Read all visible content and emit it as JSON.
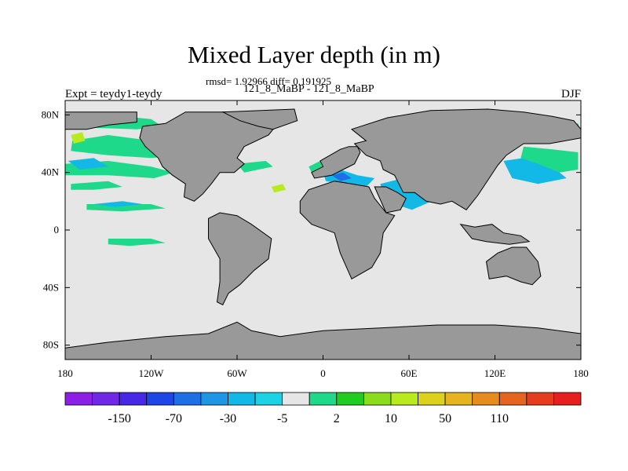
{
  "title": "Mixed Layer depth (in m)",
  "stats": "rmsd= 1.92966 diff= 0.191925",
  "periods": "121_8_MaBP - 121_8_MaBP",
  "left_label": "Expt = teydy1-teydy",
  "right_label": "DJF",
  "map": {
    "lon_range": [
      -180,
      180
    ],
    "lat_range": [
      -90,
      90
    ],
    "ocean_color": "#e6e6e6",
    "land_color": "#999999",
    "x_ticks": [
      {
        "lon": -180,
        "label": "180"
      },
      {
        "lon": -120,
        "label": "120W"
      },
      {
        "lon": -60,
        "label": "60W"
      },
      {
        "lon": 0,
        "label": "0"
      },
      {
        "lon": 60,
        "label": "60E"
      },
      {
        "lon": 120,
        "label": "120E"
      },
      {
        "lon": 180,
        "label": "180"
      }
    ],
    "y_ticks": [
      {
        "lat": 80,
        "label": "80N"
      },
      {
        "lat": 40,
        "label": "40N"
      },
      {
        "lat": 0,
        "label": "0"
      },
      {
        "lat": -40,
        "label": "40S"
      },
      {
        "lat": -80,
        "label": "80S"
      }
    ],
    "land_masses": [
      {
        "name": "north-america",
        "points": [
          [
            -96,
            82
          ],
          [
            -40,
            82
          ],
          [
            -30,
            76
          ],
          [
            -38,
            66
          ],
          [
            -55,
            58
          ],
          [
            -60,
            50
          ],
          [
            -55,
            46
          ],
          [
            -62,
            40
          ],
          [
            -72,
            40
          ],
          [
            -78,
            32
          ],
          [
            -84,
            25
          ],
          [
            -90,
            20
          ],
          [
            -97,
            23
          ],
          [
            -96,
            32
          ],
          [
            -105,
            38
          ],
          [
            -112,
            44
          ],
          [
            -115,
            50
          ],
          [
            -124,
            58
          ],
          [
            -128,
            64
          ],
          [
            -126,
            72
          ],
          [
            -110,
            74
          ]
        ]
      },
      {
        "name": "alaska-siberia-strip",
        "points": [
          [
            -180,
            82
          ],
          [
            -130,
            82
          ],
          [
            -130,
            75
          ],
          [
            -150,
            73
          ],
          [
            -165,
            70
          ],
          [
            -180,
            70
          ]
        ]
      },
      {
        "name": "greenland",
        "points": [
          [
            -70,
            82
          ],
          [
            -20,
            84
          ],
          [
            -18,
            76
          ],
          [
            -35,
            70
          ],
          [
            -45,
            72
          ],
          [
            -58,
            76
          ]
        ]
      },
      {
        "name": "eurasia",
        "points": [
          [
            20,
            70
          ],
          [
            45,
            78
          ],
          [
            75,
            83
          ],
          [
            115,
            84
          ],
          [
            140,
            82
          ],
          [
            160,
            79
          ],
          [
            175,
            76
          ],
          [
            180,
            70
          ],
          [
            180,
            64
          ],
          [
            158,
            60
          ],
          [
            140,
            60
          ],
          [
            128,
            52
          ],
          [
            122,
            45
          ],
          [
            116,
            36
          ],
          [
            108,
            24
          ],
          [
            100,
            14
          ],
          [
            90,
            20
          ],
          [
            82,
            18
          ],
          [
            72,
            20
          ],
          [
            64,
            26
          ],
          [
            56,
            26
          ],
          [
            50,
            38
          ],
          [
            42,
            42
          ],
          [
            40,
            48
          ],
          [
            30,
            52
          ],
          [
            26,
            56
          ],
          [
            22,
            60
          ],
          [
            30,
            62
          ]
        ]
      },
      {
        "name": "europe-west",
        "points": [
          [
            -8,
            40
          ],
          [
            0,
            44
          ],
          [
            -2,
            48
          ],
          [
            5,
            52
          ],
          [
            12,
            56
          ],
          [
            18,
            58
          ],
          [
            24,
            58
          ],
          [
            26,
            54
          ],
          [
            22,
            46
          ],
          [
            14,
            42
          ],
          [
            6,
            38
          ],
          [
            -6,
            36
          ]
        ]
      },
      {
        "name": "south-america",
        "points": [
          [
            -80,
            8
          ],
          [
            -72,
            12
          ],
          [
            -60,
            10
          ],
          [
            -50,
            4
          ],
          [
            -36,
            -6
          ],
          [
            -38,
            -20
          ],
          [
            -48,
            -28
          ],
          [
            -58,
            -38
          ],
          [
            -66,
            -44
          ],
          [
            -70,
            -52
          ],
          [
            -74,
            -50
          ],
          [
            -72,
            -36
          ],
          [
            -72,
            -20
          ],
          [
            -80,
            -6
          ]
        ]
      },
      {
        "name": "africa",
        "points": [
          [
            -16,
            20
          ],
          [
            -10,
            28
          ],
          [
            8,
            34
          ],
          [
            20,
            32
          ],
          [
            32,
            30
          ],
          [
            36,
            22
          ],
          [
            44,
            12
          ],
          [
            50,
            10
          ],
          [
            42,
            -2
          ],
          [
            40,
            -16
          ],
          [
            34,
            -26
          ],
          [
            20,
            -34
          ],
          [
            12,
            -16
          ],
          [
            8,
            -2
          ],
          [
            -8,
            4
          ],
          [
            -16,
            12
          ]
        ]
      },
      {
        "name": "arabia",
        "points": [
          [
            36,
            30
          ],
          [
            44,
            30
          ],
          [
            52,
            26
          ],
          [
            58,
            22
          ],
          [
            54,
            14
          ],
          [
            44,
            12
          ]
        ]
      },
      {
        "name": "southeast-asia-islands",
        "points": [
          [
            96,
            4
          ],
          [
            106,
            2
          ],
          [
            118,
            4
          ],
          [
            126,
            -2
          ],
          [
            138,
            -4
          ],
          [
            144,
            -8
          ],
          [
            130,
            -10
          ],
          [
            114,
            -8
          ],
          [
            104,
            -6
          ]
        ]
      },
      {
        "name": "australia",
        "points": [
          [
            114,
            -22
          ],
          [
            122,
            -16
          ],
          [
            132,
            -12
          ],
          [
            142,
            -12
          ],
          [
            150,
            -22
          ],
          [
            152,
            -32
          ],
          [
            146,
            -38
          ],
          [
            138,
            -36
          ],
          [
            128,
            -32
          ],
          [
            116,
            -34
          ]
        ]
      },
      {
        "name": "antarctica",
        "points": [
          [
            -180,
            -82
          ],
          [
            -150,
            -78
          ],
          [
            -110,
            -74
          ],
          [
            -80,
            -72
          ],
          [
            -60,
            -64
          ],
          [
            -50,
            -70
          ],
          [
            -30,
            -74
          ],
          [
            0,
            -70
          ],
          [
            40,
            -68
          ],
          [
            80,
            -66
          ],
          [
            120,
            -66
          ],
          [
            150,
            -68
          ],
          [
            180,
            -72
          ],
          [
            180,
            -90
          ],
          [
            -180,
            -90
          ]
        ]
      }
    ],
    "anomaly_patches": [
      {
        "color": "#1ed98a",
        "points": [
          [
            -178,
            78
          ],
          [
            -150,
            80
          ],
          [
            -120,
            77
          ],
          [
            -112,
            72
          ],
          [
            -130,
            70
          ],
          [
            -160,
            71
          ],
          [
            -178,
            72
          ]
        ]
      },
      {
        "color": "#1ed98a",
        "points": [
          [
            -175,
            62
          ],
          [
            -150,
            66
          ],
          [
            -120,
            62
          ],
          [
            -100,
            58
          ],
          [
            -96,
            52
          ],
          [
            -120,
            50
          ],
          [
            -150,
            52
          ],
          [
            -176,
            55
          ]
        ]
      },
      {
        "color": "#1ed98a",
        "points": [
          [
            -180,
            46
          ],
          [
            -150,
            48
          ],
          [
            -120,
            44
          ],
          [
            -104,
            40
          ],
          [
            -118,
            36
          ],
          [
            -150,
            38
          ],
          [
            -180,
            38
          ]
        ]
      },
      {
        "color": "#b9ea1e",
        "points": [
          [
            -176,
            66
          ],
          [
            -168,
            68
          ],
          [
            -166,
            62
          ],
          [
            -174,
            60
          ]
        ]
      },
      {
        "color": "#1ed98a",
        "points": [
          [
            -176,
            32
          ],
          [
            -150,
            34
          ],
          [
            -140,
            30
          ],
          [
            -160,
            28
          ],
          [
            -176,
            28
          ]
        ]
      },
      {
        "color": "#1ed98a",
        "points": [
          [
            -165,
            18
          ],
          [
            -120,
            18
          ],
          [
            -110,
            15
          ],
          [
            -140,
            13
          ],
          [
            -165,
            14
          ]
        ]
      },
      {
        "color": "#1ed98a",
        "points": [
          [
            -150,
            -6
          ],
          [
            -120,
            -6
          ],
          [
            -110,
            -9
          ],
          [
            -135,
            -11
          ],
          [
            -150,
            -10
          ]
        ]
      },
      {
        "color": "#12b9e6",
        "points": [
          [
            -178,
            48
          ],
          [
            -160,
            50
          ],
          [
            -150,
            44
          ],
          [
            -170,
            42
          ]
        ]
      },
      {
        "color": "#12b9e6",
        "points": [
          [
            -160,
            18
          ],
          [
            -140,
            20
          ],
          [
            -126,
            18
          ],
          [
            -145,
            16
          ]
        ]
      },
      {
        "color": "#1ed98a",
        "points": [
          [
            -60,
            46
          ],
          [
            -40,
            48
          ],
          [
            -35,
            44
          ],
          [
            -55,
            40
          ]
        ]
      },
      {
        "color": "#1ed98a",
        "points": [
          [
            -10,
            44
          ],
          [
            -2,
            48
          ],
          [
            0,
            42
          ],
          [
            -8,
            40
          ]
        ]
      },
      {
        "color": "#12b9e6",
        "points": [
          [
            0,
            40
          ],
          [
            12,
            42
          ],
          [
            24,
            38
          ],
          [
            36,
            36
          ],
          [
            30,
            30
          ],
          [
            14,
            32
          ],
          [
            2,
            34
          ]
        ]
      },
      {
        "color": "#1e6ee6",
        "points": [
          [
            6,
            38
          ],
          [
            14,
            40
          ],
          [
            20,
            36
          ],
          [
            12,
            34
          ]
        ]
      },
      {
        "color": "#12b9e6",
        "points": [
          [
            40,
            32
          ],
          [
            56,
            36
          ],
          [
            70,
            32
          ],
          [
            76,
            20
          ],
          [
            62,
            14
          ],
          [
            50,
            18
          ],
          [
            42,
            24
          ]
        ]
      },
      {
        "color": "#12b9e6",
        "points": [
          [
            126,
            48
          ],
          [
            140,
            50
          ],
          [
            160,
            44
          ],
          [
            170,
            36
          ],
          [
            150,
            32
          ],
          [
            132,
            36
          ]
        ]
      },
      {
        "color": "#1ed98a",
        "points": [
          [
            140,
            58
          ],
          [
            160,
            56
          ],
          [
            178,
            54
          ],
          [
            178,
            42
          ],
          [
            165,
            40
          ],
          [
            150,
            46
          ],
          [
            138,
            50
          ]
        ]
      },
      {
        "color": "#1ed98a",
        "points": [
          [
            170,
            72
          ],
          [
            178,
            74
          ],
          [
            180,
            68
          ],
          [
            172,
            68
          ]
        ]
      },
      {
        "color": "#b9ea1e",
        "points": [
          [
            -36,
            30
          ],
          [
            -28,
            32
          ],
          [
            -26,
            28
          ],
          [
            -34,
            26
          ]
        ]
      }
    ]
  },
  "colorbar": {
    "colors": [
      "#8c1ee6",
      "#6e28e6",
      "#4628e6",
      "#1e46e6",
      "#1e6ee6",
      "#1e96e6",
      "#12b9e6",
      "#1ed2e6",
      "#e6e6e6",
      "#1ed98a",
      "#1ecd1e",
      "#8cdc1e",
      "#b9ea1e",
      "#dcd21e",
      "#e6b41e",
      "#e68c1e",
      "#e6641e",
      "#e63c1e",
      "#e61e1e"
    ],
    "labels": [
      "-150",
      "-70",
      "-30",
      "-5",
      "2",
      "10",
      "50",
      "110"
    ]
  }
}
